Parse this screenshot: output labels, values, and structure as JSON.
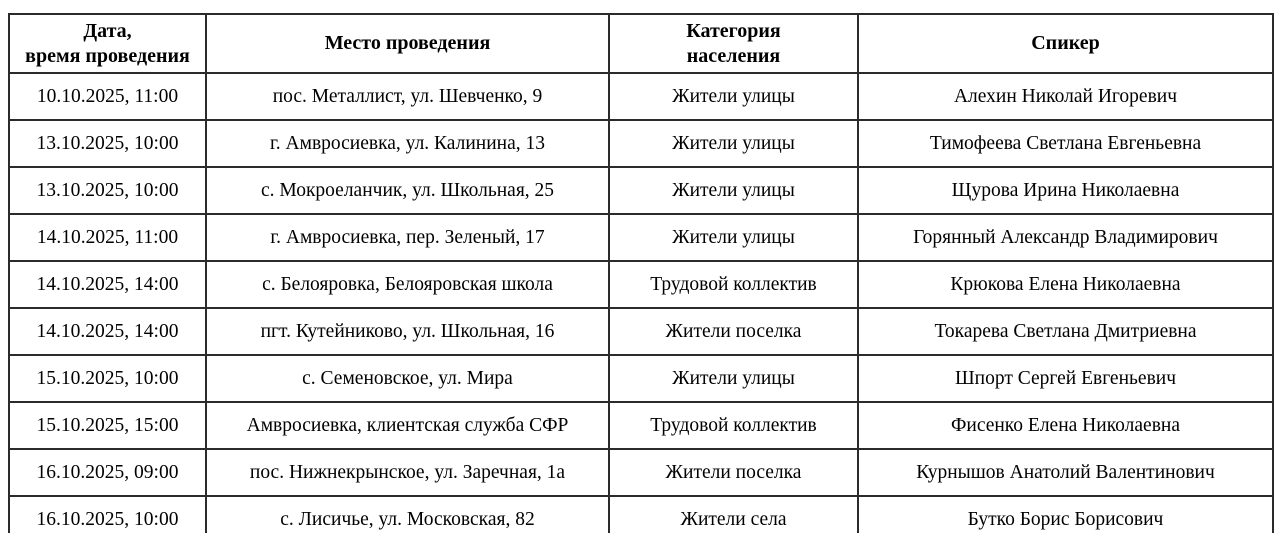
{
  "table": {
    "headers": [
      "Дата,\nвремя проведения",
      "Место проведения",
      "Категория\nнаселения",
      "Спикер"
    ],
    "rows": [
      [
        "10.10.2025, 11:00",
        "пос. Металлист, ул. Шевченко, 9",
        "Жители улицы",
        "Алехин Николай Игоревич"
      ],
      [
        "13.10.2025, 10:00",
        "г. Амвросиевка, ул. Калинина, 13",
        "Жители улицы",
        "Тимофеева Светлана Евгеньевна"
      ],
      [
        "13.10.2025, 10:00",
        "с. Мокроеланчик, ул. Школьная, 25",
        "Жители улицы",
        "Щурова Ирина Николаевна"
      ],
      [
        "14.10.2025, 11:00",
        "г. Амвросиевка, пер. Зеленый, 17",
        "Жители улицы",
        "Горянный Александр Владимирович"
      ],
      [
        "14.10.2025, 14:00",
        "с. Белояровка, Белояровская школа",
        "Трудовой коллектив",
        "Крюкова Елена Николаевна"
      ],
      [
        "14.10.2025, 14:00",
        "пгт. Кутейниково, ул. Школьная, 16",
        "Жители поселка",
        "Токарева Светлана Дмитриевна"
      ],
      [
        "15.10.2025, 10:00",
        "с. Семеновское, ул. Мира",
        "Жители улицы",
        "Шпорт Сергей Евгеньевич"
      ],
      [
        "15.10.2025, 15:00",
        "Амвросиевка, клиентская служба СФР",
        "Трудовой коллектив",
        "Фисенко Елена Николаевна"
      ],
      [
        "16.10.2025, 09:00",
        "пос. Нижнекрынское, ул. Заречная, 1а",
        "Жители поселка",
        "Курнышов Анатолий Валентинович"
      ],
      [
        "16.10.2025, 10:00",
        "с. Лисичье, ул. Московская, 82",
        "Жители села",
        "Бутко Борис Борисович"
      ]
    ]
  }
}
